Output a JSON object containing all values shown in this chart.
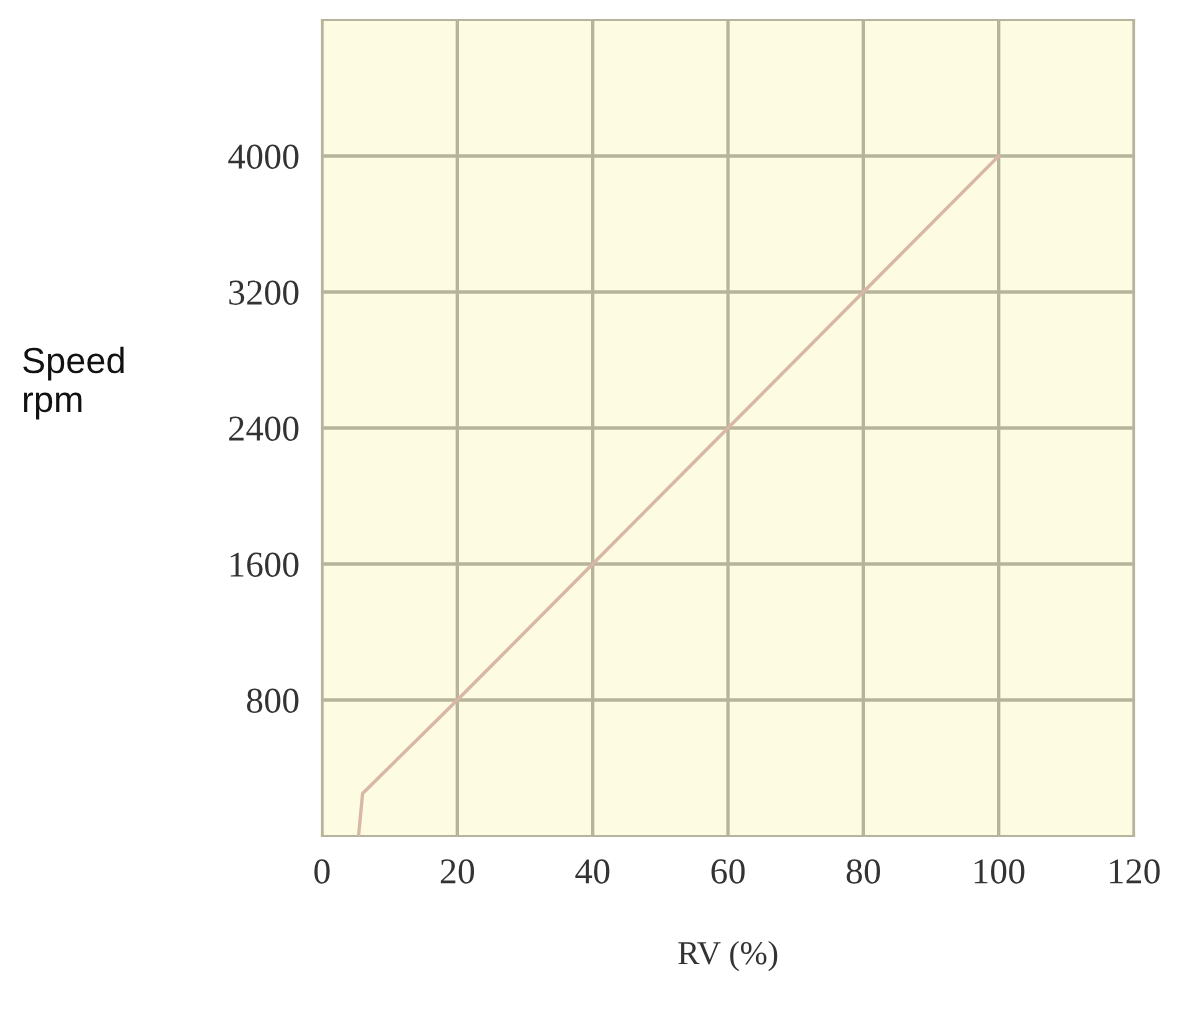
{
  "chart_data": {
    "type": "line",
    "xlabel": "RV (%)",
    "ylabel": "Speed\nrpm",
    "x": [
      5.4,
      6,
      20,
      40,
      60,
      80,
      100
    ],
    "series": [
      {
        "color": "#d8b8a4",
        "values": [
          0,
          250,
          800,
          1600,
          2400,
          3200,
          4000
        ]
      }
    ],
    "xlim": [
      0,
      120
    ],
    "ylim": [
      0,
      4800
    ],
    "xticks": [
      0,
      20,
      40,
      60,
      80,
      100,
      120
    ],
    "yticks": [
      800,
      1600,
      2400,
      3200,
      4000
    ],
    "grid": true,
    "marker": "none",
    "line_style": "solid"
  }
}
